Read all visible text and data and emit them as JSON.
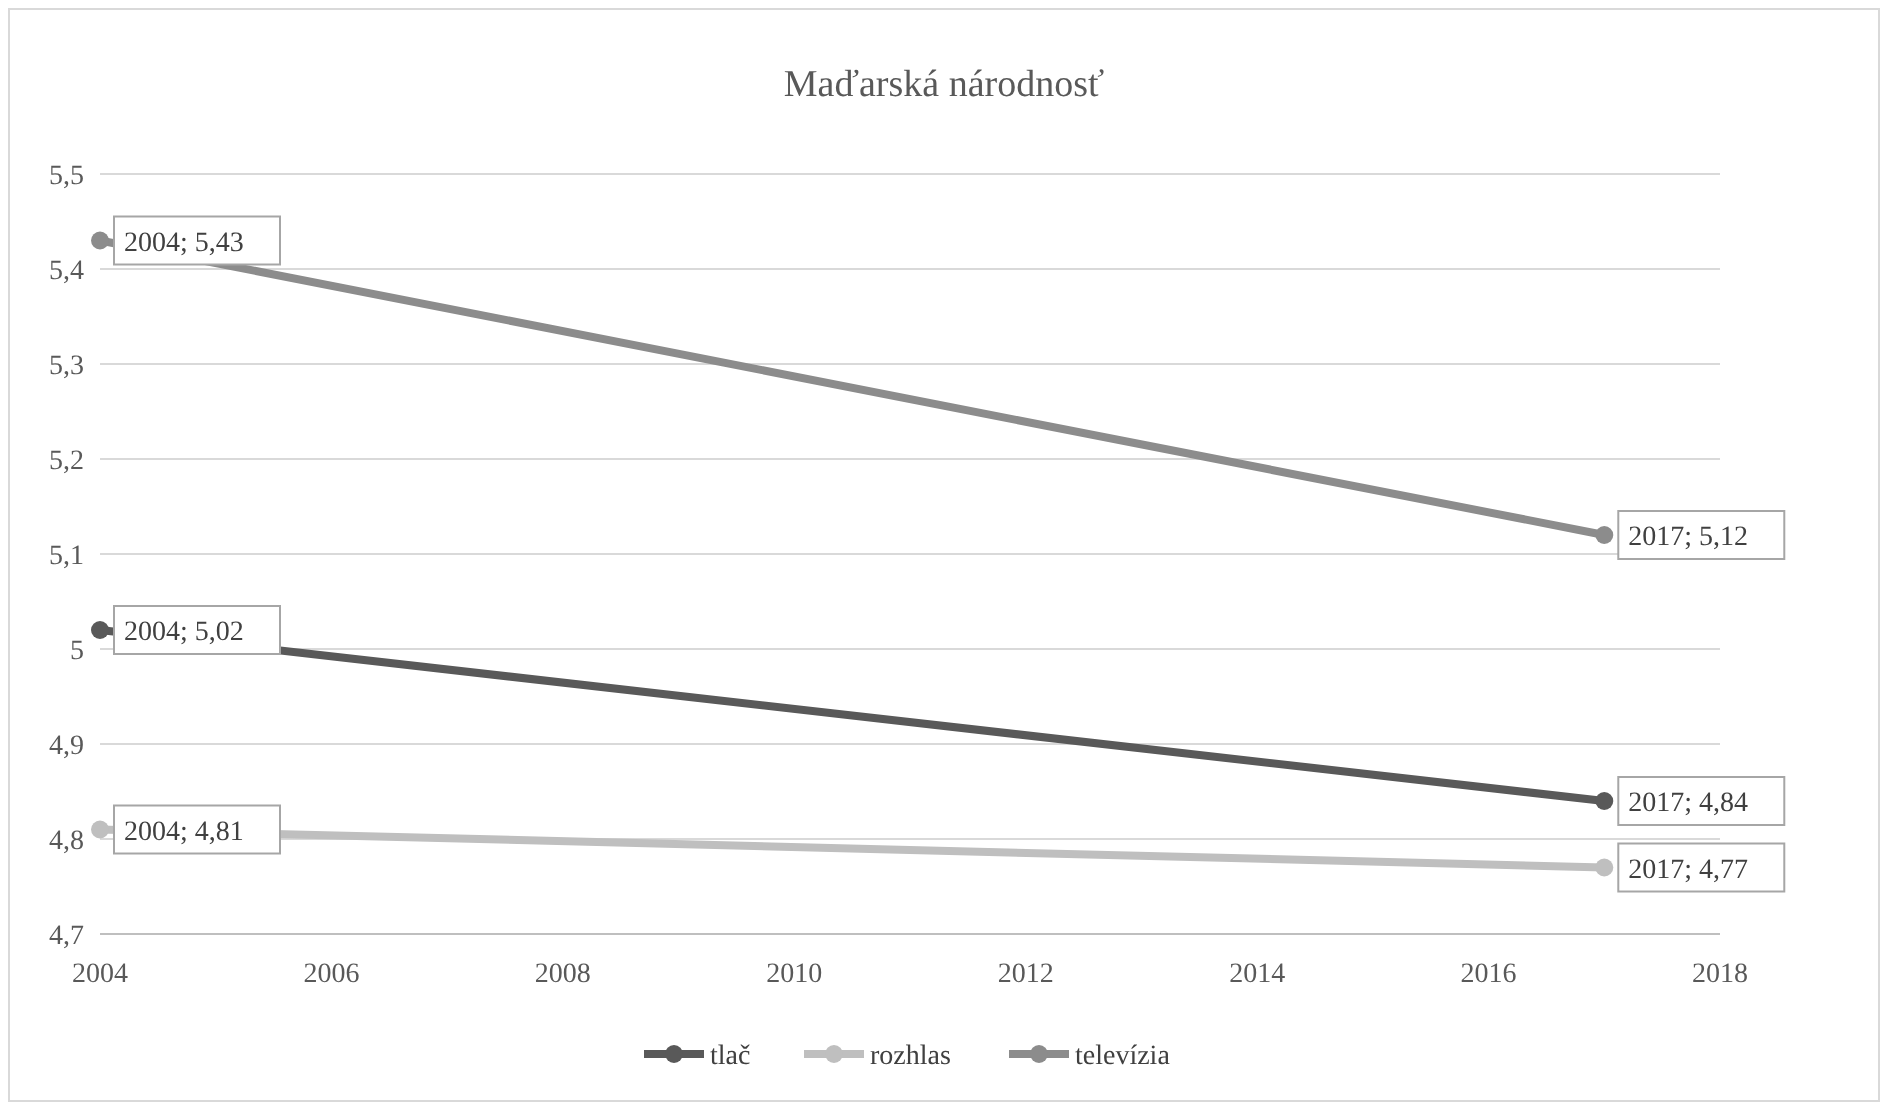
{
  "chart_data": {
    "type": "line",
    "title": "Maďarská národnosť",
    "x": [
      2004,
      2017
    ],
    "series": [
      {
        "name": "tlač",
        "color": "#595959",
        "values": [
          5.02,
          4.84
        ],
        "value_labels": [
          "2004; 5,02",
          "2017; 4,84"
        ]
      },
      {
        "name": "rozhlas",
        "color": "#bfbfbf",
        "values": [
          4.81,
          4.77
        ],
        "value_labels": [
          "2004; 4,81",
          "2017; 4,77"
        ]
      },
      {
        "name": "televízia",
        "color": "#8c8c8c",
        "values": [
          5.43,
          5.12
        ],
        "value_labels": [
          "2004; 5,43",
          "2017; 5,12"
        ]
      }
    ],
    "xlim": [
      2004,
      2018
    ],
    "xticks": [
      2004,
      2006,
      2008,
      2010,
      2012,
      2014,
      2016,
      2018
    ],
    "ylim": [
      4.7,
      5.5
    ],
    "yticks": [
      {
        "value": 4.7,
        "label": "4,7"
      },
      {
        "value": 4.8,
        "label": "4,8"
      },
      {
        "value": 4.9,
        "label": "4,9"
      },
      5,
      {
        "value": 5.1,
        "label": "5,1"
      },
      {
        "value": 5.2,
        "label": "5,2"
      },
      {
        "value": 5.3,
        "label": "5,3"
      },
      {
        "value": 5.4,
        "label": "5,4"
      },
      {
        "value": 5.5,
        "label": "5,5"
      }
    ],
    "grid": "y",
    "legend": "bottom",
    "marker": "circle",
    "line_style": "solid"
  }
}
